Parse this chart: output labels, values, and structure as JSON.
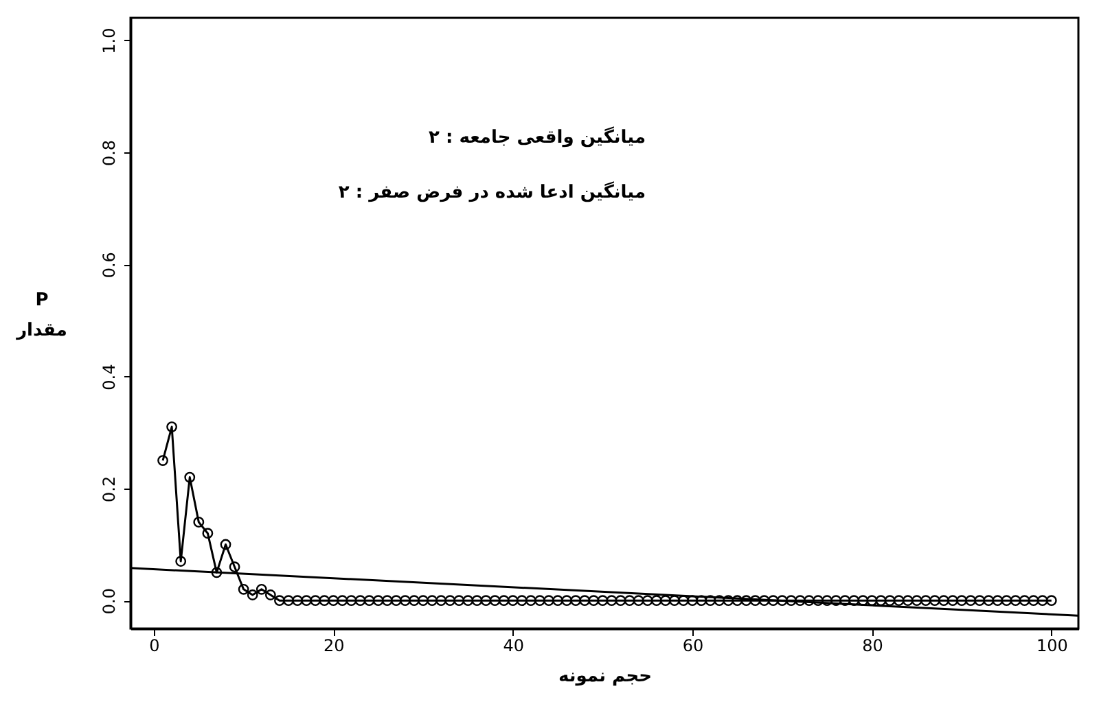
{
  "chart_data": {
    "type": "line",
    "xlabel": "حجم نمونه",
    "ylabel": "P\nمقدار",
    "annotations": [
      "میانگین واقعی جامعه : ۲",
      "میانگین ادعا شده در فرض صفر : ۲"
    ],
    "xlim": [
      -2.6,
      103
    ],
    "xticks": [
      0,
      20,
      40,
      60,
      80,
      100
    ],
    "ylim": [
      -0.05,
      1.04
    ],
    "yticks": [
      {
        "value": 0,
        "label": "0.0"
      },
      {
        "value": 0.2,
        "label": "0.2"
      },
      {
        "value": 0.4,
        "label": "0.4"
      },
      {
        "value": 0.6,
        "label": "0.6"
      },
      {
        "value": 0.8,
        "label": "0.8"
      },
      {
        "value": 1,
        "label": "1.0"
      }
    ],
    "grid": false,
    "marker": "circle",
    "line_style": "solid",
    "x": [
      1,
      2,
      3,
      4,
      5,
      6,
      7,
      8,
      9,
      10,
      11,
      12,
      13,
      14,
      15,
      16,
      17,
      18,
      19,
      20,
      21,
      22,
      23,
      24,
      25,
      26,
      27,
      28,
      29,
      30,
      31,
      32,
      33,
      34,
      35,
      36,
      37,
      38,
      39,
      40,
      41,
      42,
      43,
      44,
      45,
      46,
      47,
      48,
      49,
      50,
      51,
      52,
      53,
      54,
      55,
      56,
      57,
      58,
      59,
      60,
      61,
      62,
      63,
      64,
      65,
      66,
      67,
      68,
      69,
      70,
      71,
      72,
      73,
      74,
      75,
      76,
      77,
      78,
      79,
      80,
      81,
      82,
      83,
      84,
      85,
      86,
      87,
      88,
      89,
      90,
      91,
      92,
      93,
      94,
      95,
      96,
      97,
      98,
      99,
      100
    ],
    "series": [
      {
        "color": "#000000",
        "values": [
          0.25,
          0.31,
          0.07,
          0.22,
          0.14,
          0.12,
          0.05,
          0.1,
          0.06,
          0.02,
          0.01,
          0.02,
          0.01,
          0,
          0,
          0,
          0,
          0,
          0,
          0,
          0,
          0,
          0,
          0,
          0,
          0,
          0,
          0,
          0,
          0,
          0,
          0,
          0,
          0,
          0,
          0,
          0,
          0,
          0,
          0,
          0,
          0,
          0,
          0,
          0,
          0,
          0,
          0,
          0,
          0,
          0,
          0,
          0,
          0,
          0,
          0,
          0,
          0,
          0,
          0,
          0,
          0,
          0,
          0,
          0,
          0,
          0,
          0,
          0,
          0,
          0,
          0,
          0,
          0,
          0,
          0,
          0,
          0,
          0,
          0,
          0,
          0,
          0,
          0,
          0,
          0,
          0,
          0,
          0,
          0,
          0,
          0,
          0,
          0,
          0,
          0,
          0,
          0,
          0,
          0
        ]
      },
      {
        "type": "line",
        "marker": "none",
        "color": "#000000",
        "x": [
          -2.6,
          103
        ],
        "values": [
          0.058,
          -0.027
        ]
      }
    ]
  }
}
